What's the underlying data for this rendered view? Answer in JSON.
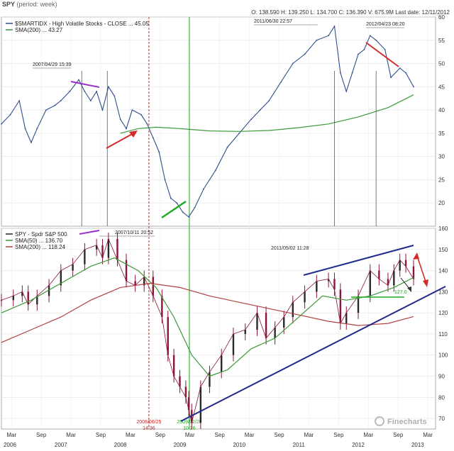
{
  "header": {
    "title": "SPY",
    "period": "(period: week)",
    "ohlc": "O: 138.590  H: 139.250  L: 134.700  C: 136.390  V: 675.9M  Last date: 12/11/2012"
  },
  "watermark": "Finecharts",
  "chart_data": [
    {
      "type": "line",
      "panel": "top",
      "ylim": [
        15,
        60
      ],
      "yticks": [
        20,
        25,
        30,
        35,
        40,
        45,
        50,
        55,
        60
      ],
      "legend": [
        {
          "label": "$SMARTIDX - High Volatile Stocks - CLOSE ... 45.05",
          "color": "#2f4f8f"
        },
        {
          "label": "SMA(200) ... 43.27",
          "color": "#3a9a3a"
        }
      ],
      "series": [
        {
          "name": "$SMARTIDX - High Volatile Stocks - CLOSE",
          "color": "#2f4f8f",
          "x": [
            2006.0,
            2006.15,
            2006.3,
            2006.4,
            2006.5,
            2006.6,
            2006.75,
            2006.9,
            2007.0,
            2007.15,
            2007.3,
            2007.4,
            2007.5,
            2007.6,
            2007.7,
            2007.8,
            2007.9,
            2008.0,
            2008.1,
            2008.2,
            2008.35,
            2008.45,
            2008.55,
            2008.65,
            2008.75,
            2008.85,
            2008.95,
            2009.05,
            2009.15,
            2009.25,
            2009.4,
            2009.6,
            2009.8,
            2010.0,
            2010.2,
            2010.35,
            2010.5,
            2010.7,
            2010.9,
            2011.1,
            2011.3,
            2011.5,
            2011.6,
            2011.7,
            2011.8,
            2011.9,
            2012.0,
            2012.1,
            2012.2,
            2012.3,
            2012.45,
            2012.55,
            2012.7,
            2012.8,
            2012.93
          ],
          "values": [
            37,
            39,
            42,
            36,
            33,
            36,
            40,
            41,
            42,
            44,
            46.5,
            44,
            42,
            44,
            40,
            45,
            43,
            38,
            36,
            40,
            39,
            37,
            34,
            31,
            25,
            21,
            20,
            18,
            17,
            19,
            23,
            27,
            32,
            35,
            38,
            40,
            42,
            46,
            50,
            52,
            55,
            56,
            58,
            48,
            44,
            48,
            52,
            53,
            56,
            55,
            53,
            47,
            49,
            48,
            45
          ]
        },
        {
          "name": "SMA(200)",
          "color": "#3a9a3a",
          "x": [
            2008.0,
            2008.3,
            2008.6,
            2009.0,
            2009.5,
            2010.0,
            2010.5,
            2011.0,
            2011.5,
            2012.0,
            2012.5,
            2012.93
          ],
          "values": [
            35,
            36,
            36.3,
            36,
            35.5,
            35.4,
            35.6,
            36.2,
            37,
            38.5,
            40.5,
            43.27
          ]
        }
      ],
      "annotations": [
        "2007/04/29 15:39",
        "2011/06/30 22:57",
        "2012/04/23 08:20"
      ]
    },
    {
      "type": "candlestick",
      "panel": "bottom",
      "ylim": [
        65,
        160
      ],
      "yticks": [
        70,
        80,
        90,
        100,
        110,
        120,
        130,
        140,
        150,
        160
      ],
      "legend": [
        {
          "label": "SPY - Spdr S&P 500",
          "color": "#222222"
        },
        {
          "label": "SMA(50) ... 136.70",
          "color": "#3a9a3a"
        },
        {
          "label": "SMA(200) ... 118.24",
          "color": "#b04040"
        }
      ],
      "series": [
        {
          "name": "SPY - Spdr S&P 500",
          "color": "#8a1538",
          "x": [
            2006.0,
            2006.2,
            2006.35,
            2006.45,
            2006.6,
            2006.8,
            2007.0,
            2007.2,
            2007.4,
            2007.6,
            2007.7,
            2007.8,
            2007.95,
            2008.1,
            2008.25,
            2008.4,
            2008.55,
            2008.7,
            2008.8,
            2008.9,
            2009.0,
            2009.1,
            2009.15,
            2009.2,
            2009.35,
            2009.5,
            2009.7,
            2009.9,
            2010.1,
            2010.3,
            2010.45,
            2010.6,
            2010.75,
            2010.9,
            2011.1,
            2011.3,
            2011.5,
            2011.6,
            2011.7,
            2011.8,
            2012.0,
            2012.2,
            2012.35,
            2012.5,
            2012.6,
            2012.7,
            2012.8,
            2012.93
          ],
          "values": [
            126,
            128,
            130,
            124,
            128,
            133,
            140,
            143,
            150,
            152,
            146,
            155,
            145,
            135,
            133,
            137,
            128,
            118,
            100,
            90,
            85,
            80,
            74,
            68,
            85,
            92,
            100,
            110,
            112,
            120,
            108,
            113,
            118,
            125,
            130,
            135,
            136,
            131,
            115,
            120,
            128,
            140,
            136,
            133,
            140,
            145,
            142,
            136
          ]
        },
        {
          "name": "SMA(50)",
          "color": "#3a9a3a",
          "x": [
            2006.0,
            2006.5,
            2007.0,
            2007.5,
            2007.9,
            2008.3,
            2008.6,
            2008.9,
            2009.2,
            2009.5,
            2009.8,
            2010.2,
            2010.6,
            2011.0,
            2011.4,
            2011.8,
            2012.2,
            2012.6,
            2012.93
          ],
          "values": [
            120,
            126,
            134,
            142,
            146,
            140,
            132,
            118,
            100,
            90,
            93,
            103,
            108,
            118,
            128,
            126,
            128,
            132,
            136.7
          ]
        },
        {
          "name": "SMA(200)",
          "color": "#b04040",
          "x": [
            2006.0,
            2006.5,
            2007.0,
            2007.5,
            2008.0,
            2008.5,
            2009.0,
            2009.5,
            2010.0,
            2010.5,
            2011.0,
            2011.5,
            2012.0,
            2012.5,
            2012.93
          ],
          "values": [
            106,
            112,
            118,
            126,
            132,
            134,
            132,
            128,
            125,
            122,
            119,
            116,
            114,
            115,
            118.24
          ]
        }
      ],
      "annotations": [
        "2007/10/11 20:52",
        "2011/05/02 11:28",
        "127.0"
      ]
    }
  ],
  "xaxis": {
    "ticks": [
      {
        "label": "Mar",
        "x": 2006.17
      },
      {
        "label": "Sep",
        "x": 2006.67
      },
      {
        "label": "Mar",
        "x": 2007.17
      },
      {
        "label": "Sep",
        "x": 2007.67
      },
      {
        "label": "Mar",
        "x": 2008.17
      },
      {
        "label": "Sep",
        "x": 2008.67
      },
      {
        "label": "Mar",
        "x": 2009.17
      },
      {
        "label": "Sep",
        "x": 2009.67
      },
      {
        "label": "Mar",
        "x": 2010.17
      },
      {
        "label": "Sep",
        "x": 2010.67
      },
      {
        "label": "Mar",
        "x": 2011.17
      },
      {
        "label": "Sep",
        "x": 2011.67
      },
      {
        "label": "Mar",
        "x": 2012.17
      },
      {
        "label": "Sep",
        "x": 2012.67
      },
      {
        "label": "Mar",
        "x": 2013.17
      }
    ],
    "years": [
      {
        "label": "2006",
        "x": 2006.0
      },
      {
        "label": "2007",
        "x": 2007.0
      },
      {
        "label": "2008",
        "x": 2008.0
      },
      {
        "label": "2009",
        "x": 2009.0
      },
      {
        "label": "2010",
        "x": 2010.0
      },
      {
        "label": "2011",
        "x": 2011.0
      },
      {
        "label": "2012",
        "x": 2012.0
      },
      {
        "label": "2013",
        "x": 2013.0
      }
    ]
  },
  "markers": [
    {
      "name": "red-dashed",
      "x": 2008.48,
      "label_top": "2008/06/25",
      "label_bottom": "14:36",
      "color": "#cc2222"
    },
    {
      "name": "green-solid",
      "x": 2009.16,
      "label_top": "2009/02/28",
      "label_bottom": "10:26",
      "color": "#22aa22"
    }
  ]
}
